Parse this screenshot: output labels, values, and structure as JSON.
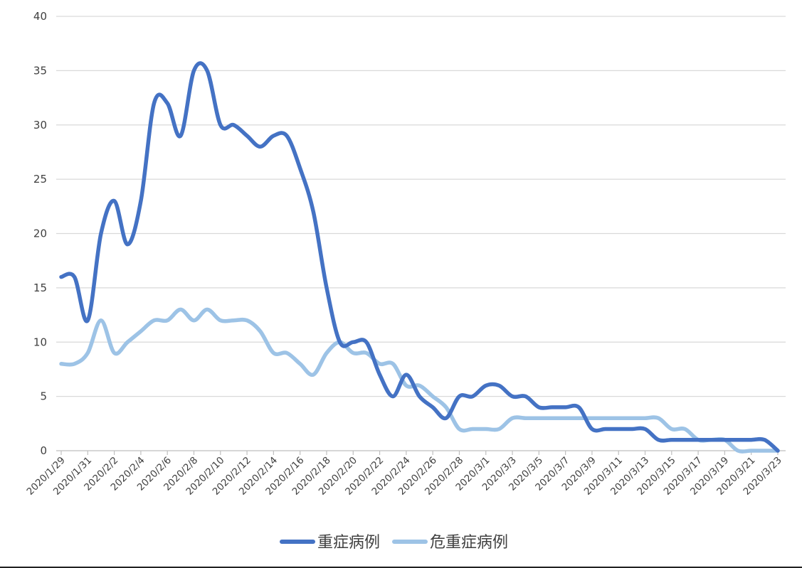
{
  "chart_data": {
    "type": "line",
    "y_ticks": [
      "0",
      "5",
      "10",
      "15",
      "20",
      "25",
      "30",
      "35",
      "40"
    ],
    "ylim": [
      0,
      40
    ],
    "grid": true,
    "legend_position": "bottom",
    "x_tick_labels": [
      "2020/1/29",
      "2020/1/31",
      "2020/2/2",
      "2020/2/4",
      "2020/2/6",
      "2020/2/8",
      "2020/2/10",
      "2020/2/12",
      "2020/2/14",
      "2020/2/16",
      "2020/2/18",
      "2020/2/20",
      "2020/2/22",
      "2020/2/24",
      "2020/2/26",
      "2020/2/28",
      "2020/3/1",
      "2020/3/3",
      "2020/3/5",
      "2020/3/7",
      "2020/3/9",
      "2020/3/11",
      "2020/3/13",
      "2020/3/15",
      "2020/3/17",
      "2020/3/19",
      "2020/3/21",
      "2020/3/23"
    ],
    "x": [
      "2020/1/29",
      "2020/1/30",
      "2020/1/31",
      "2020/2/1",
      "2020/2/2",
      "2020/2/3",
      "2020/2/4",
      "2020/2/5",
      "2020/2/6",
      "2020/2/7",
      "2020/2/8",
      "2020/2/9",
      "2020/2/10",
      "2020/2/11",
      "2020/2/12",
      "2020/2/13",
      "2020/2/14",
      "2020/2/15",
      "2020/2/16",
      "2020/2/17",
      "2020/2/18",
      "2020/2/19",
      "2020/2/20",
      "2020/2/21",
      "2020/2/22",
      "2020/2/23",
      "2020/2/24",
      "2020/2/25",
      "2020/2/26",
      "2020/2/27",
      "2020/2/28",
      "2020/2/29",
      "2020/3/1",
      "2020/3/2",
      "2020/3/3",
      "2020/3/4",
      "2020/3/5",
      "2020/3/6",
      "2020/3/7",
      "2020/3/8",
      "2020/3/9",
      "2020/3/10",
      "2020/3/11",
      "2020/3/12",
      "2020/3/13",
      "2020/3/14",
      "2020/3/15",
      "2020/3/16",
      "2020/3/17",
      "2020/3/18",
      "2020/3/19",
      "2020/3/20",
      "2020/3/21",
      "2020/3/22",
      "2020/3/23"
    ],
    "series": [
      {
        "name": "重症病例",
        "color": "#4472c4",
        "values": [
          16,
          16,
          12,
          20,
          23,
          19,
          23,
          32,
          32,
          29,
          35,
          35,
          30,
          30,
          29,
          28,
          29,
          29,
          26,
          22,
          15,
          10,
          10,
          10,
          7,
          5,
          7,
          5,
          4,
          3,
          5,
          5,
          6,
          6,
          5,
          5,
          4,
          4,
          4,
          4,
          2,
          2,
          2,
          2,
          2,
          1,
          1,
          1,
          1,
          1,
          1,
          1,
          1,
          1,
          0
        ]
      },
      {
        "name": "危重症病例",
        "color": "#9dc3e6",
        "values": [
          8,
          8,
          9,
          12,
          9,
          10,
          11,
          12,
          12,
          13,
          12,
          13,
          12,
          12,
          12,
          11,
          9,
          9,
          8,
          7,
          9,
          10,
          9,
          9,
          8,
          8,
          6,
          6,
          5,
          4,
          2,
          2,
          2,
          2,
          3,
          3,
          3,
          3,
          3,
          3,
          3,
          3,
          3,
          3,
          3,
          3,
          2,
          2,
          1,
          1,
          1,
          0,
          0,
          0,
          0
        ]
      }
    ]
  }
}
